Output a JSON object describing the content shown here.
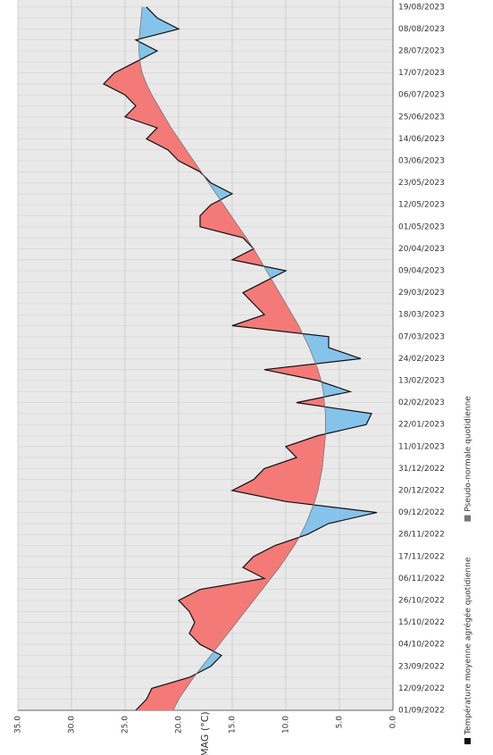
{
  "chart_data": {
    "type": "area-line",
    "y_label": "TMAG (°C)",
    "categories": [
      "01/09/2022",
      null,
      "12/09/2022",
      null,
      "23/09/2022",
      null,
      "04/10/2022",
      null,
      "15/10/2022",
      null,
      "26/10/2022",
      null,
      "06/11/2022",
      null,
      "17/11/2022",
      null,
      "28/11/2022",
      null,
      "09/12/2022",
      null,
      "20/12/2022",
      null,
      "31/12/2022",
      null,
      "11/01/2023",
      null,
      "22/01/2023",
      null,
      "02/02/2023",
      null,
      "13/02/2023",
      null,
      "24/02/2023",
      null,
      "07/03/2023",
      null,
      "18/03/2023",
      null,
      "29/03/2023",
      null,
      "09/04/2023",
      null,
      "20/04/2023",
      null,
      "01/05/2023",
      null,
      "12/05/2023",
      null,
      "23/05/2023",
      null,
      "03/06/2023",
      null,
      "14/06/2023",
      null,
      "25/06/2023",
      null,
      "06/07/2023",
      null,
      "17/07/2023",
      null,
      "28/07/2023",
      null,
      "08/08/2023",
      null,
      "19/08/2023"
    ],
    "series": [
      {
        "name": "Température moyenne agrégée quotidienne",
        "color": "#111111",
        "values": [
          24,
          23,
          22.5,
          19,
          17,
          16,
          18,
          19,
          18.5,
          19,
          20,
          18,
          12,
          14,
          13,
          11,
          8,
          6,
          1.5,
          10,
          15,
          13,
          12,
          9,
          10,
          7,
          2.5,
          2,
          9,
          4,
          7,
          12,
          3,
          6,
          6,
          15,
          12,
          13,
          14,
          12,
          10,
          15,
          13,
          14,
          18,
          18,
          17,
          15,
          17,
          18,
          20,
          21,
          23,
          22,
          25,
          24,
          25,
          27,
          26,
          24,
          22,
          24,
          20,
          22,
          23
        ]
      },
      {
        "name": "Pseudo-normale quotidienne",
        "color": "#777777",
        "values": [
          20.5,
          20,
          19.3,
          18.6,
          17.8,
          17,
          16.2,
          15.4,
          14.6,
          13.8,
          13,
          12.2,
          11.4,
          10.6,
          9.9,
          9.2,
          8.6,
          8.1,
          7.7,
          7.3,
          7,
          6.8,
          6.6,
          6.5,
          6.4,
          6.3,
          6.3,
          6.3,
          6.4,
          6.5,
          6.7,
          7,
          7.4,
          7.8,
          8.3,
          8.8,
          9.4,
          10,
          10.6,
          11.2,
          11.8,
          12.4,
          13,
          13.7,
          14.4,
          15.1,
          15.8,
          16.5,
          17.2,
          17.9,
          18.6,
          19.3,
          20,
          20.7,
          21.3,
          21.9,
          22.5,
          23,
          23.4,
          23.6,
          23.7,
          23.7,
          23.6,
          23.5,
          23.4
        ]
      }
    ],
    "above_color": "#f47a78",
    "below_color": "#86c3ea",
    "ylim": [
      0,
      35
    ],
    "yticks": [
      {
        "value": 0,
        "label": "0.0"
      },
      {
        "value": 5,
        "label": "5.0"
      },
      {
        "value": 10,
        "label": "10.0"
      },
      {
        "value": 15,
        "label": "15.0"
      },
      {
        "value": 20,
        "label": "20.0"
      },
      {
        "value": 25,
        "label": "25.0"
      },
      {
        "value": 30,
        "label": "30.0"
      },
      {
        "value": 35,
        "label": "35.0"
      }
    ],
    "grid": true,
    "legend": "bottom"
  }
}
